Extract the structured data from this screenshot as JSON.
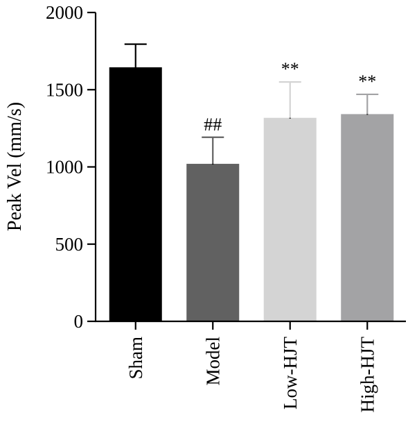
{
  "chart_data": {
    "type": "bar",
    "categories": [
      "Sham",
      "Model",
      "Low-HJT",
      "High-HJT"
    ],
    "values": [
      1645,
      1020,
      1318,
      1342
    ],
    "errors": [
      150,
      172,
      232,
      128
    ],
    "annotations": [
      "",
      "##",
      "**",
      "**"
    ],
    "colors": [
      "#000000",
      "#616161",
      "#d4d4d4",
      "#a3a3a5"
    ],
    "ylabel": "Peak Vel (mm/s)",
    "xlabel": "",
    "title": "",
    "ylim": [
      0,
      2000
    ],
    "yticks": [
      "0",
      "500",
      "1000",
      "1500",
      "2000"
    ],
    "grid": false,
    "legend": "none"
  }
}
